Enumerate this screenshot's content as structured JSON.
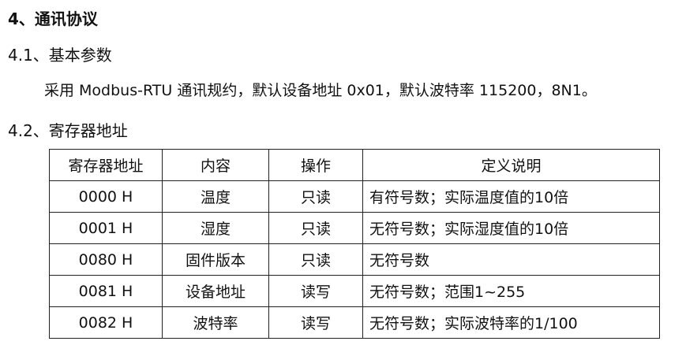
{
  "heading": "4、通讯协议",
  "section1": {
    "title": "4.1、基本参数",
    "text": "采用 Modbus-RTU  通讯规约，默认设备地址 0x01，默认波特率 115200，8N1。"
  },
  "section2": {
    "title": "4.2、寄存器地址"
  },
  "table": {
    "headers": [
      "寄存器地址",
      "内容",
      "操作",
      "定义说明"
    ],
    "rows": [
      [
        "0000 H",
        "温度",
        "只读",
        "有符号数；实际温度值的10倍"
      ],
      [
        "0001 H",
        "湿度",
        "只读",
        "无符号数；实际湿度值的10倍"
      ],
      [
        "0080 H",
        "固件版本",
        "只读",
        "无符号数"
      ],
      [
        "0081 H",
        "设备地址",
        "读写",
        "无符号数；范围1~255"
      ],
      [
        "0082 H",
        "波特率",
        "读写",
        "无符号数；实际波特率的1/100"
      ]
    ]
  }
}
